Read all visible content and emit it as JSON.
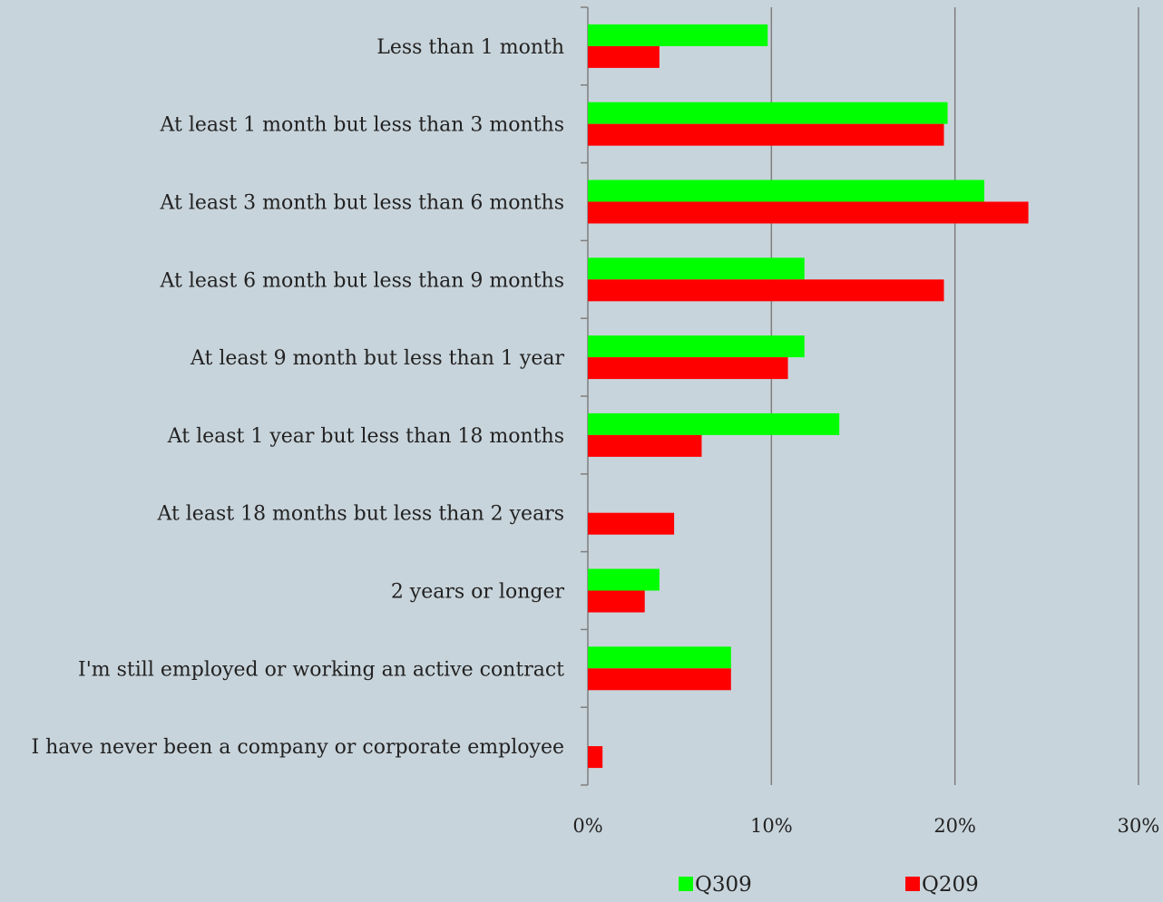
{
  "chart_data": {
    "type": "bar",
    "orientation": "horizontal",
    "categories": [
      "Less than 1 month",
      "At least 1 month but less than 3 months",
      "At least 3 month but less than 6 months",
      "At least 6 month but less than 9 months",
      "At least 9 month but less than 1 year",
      "At least 1 year but less than 18 months",
      "At least 18 months but less than 2 years",
      "2 years or longer",
      "I'm still employed or working an active contract",
      "I have never been a company or corporate employee"
    ],
    "series": [
      {
        "name": "Q309",
        "color": "#00ff00",
        "values": [
          9.8,
          19.6,
          21.6,
          11.8,
          11.8,
          13.7,
          0,
          3.9,
          7.8,
          0
        ]
      },
      {
        "name": "Q209",
        "color": "#ff0000",
        "values": [
          3.9,
          19.4,
          24.0,
          19.4,
          10.9,
          6.2,
          4.7,
          3.1,
          7.8,
          0.8
        ]
      }
    ],
    "xlim": [
      0,
      30
    ],
    "x_ticks": [
      "0%",
      "10%",
      "20%",
      "30%"
    ],
    "x_tick_values": [
      0,
      10,
      20,
      30
    ],
    "grid": "vertical",
    "legend_position": "bottom"
  }
}
